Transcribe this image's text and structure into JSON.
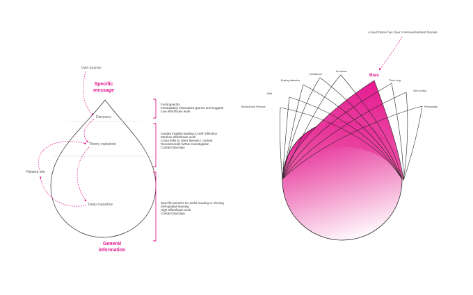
{
  "left": {
    "user_journey": "User journey",
    "specific": [
      "Specific",
      "message"
    ],
    "general": [
      "General",
      "information"
    ],
    "related": "Related info",
    "stages": {
      "discovery": "Discovery",
      "theory": "Theory explained",
      "deep": "Deep repository"
    },
    "notes": [
      [
        "Fun/impactful",
        "Immediately informative games and nuggets",
        "Low effort/brain work"
      ],
      [
        "Guided insights leading to self reflection",
        "Medium effort/brain work",
        "Cross links to other themes / content",
        "Recommends further investigation",
        "Contact Barclays"
      ],
      [
        "Specific pointers to useful reading or viewing",
        "Self-guided learning",
        "High effort/brain work",
        "Contact Barclays"
      ]
    ]
  },
  "right": {
    "annotation": "A lead theme has clear crossover/related themes",
    "bias": "Bias",
    "themes": {
      "behavioural": "Behavioural Finance",
      "risk": "Risk",
      "buying": "Buying attention",
      "confidence": "Confidence",
      "emotions": "Emotions",
      "thinking": "Think ung",
      "self_control": "Self control",
      "personality": "Personality"
    }
  },
  "colors": {
    "accent": "#e4118c",
    "line": "#222222"
  }
}
